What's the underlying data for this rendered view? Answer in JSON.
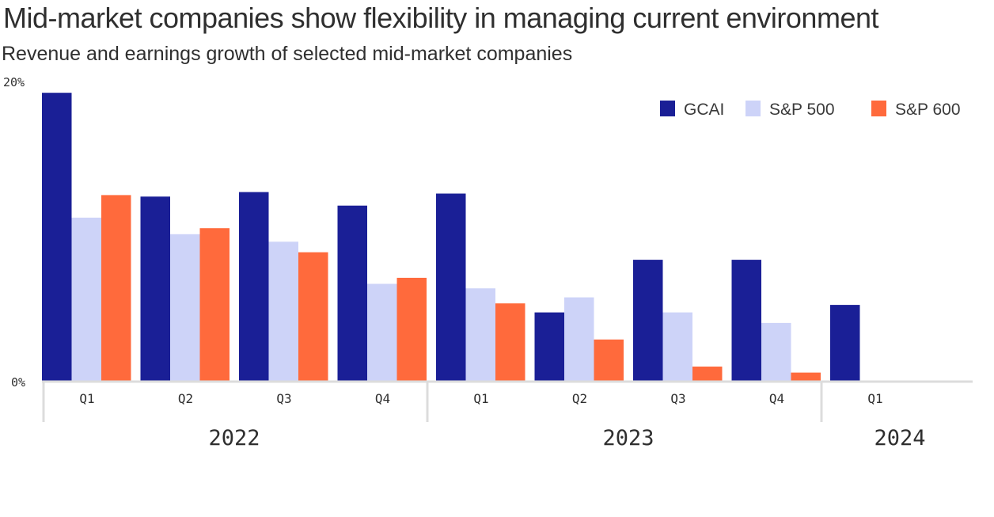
{
  "chart_data": {
    "type": "bar",
    "title": "Mid-market companies show flexibility in managing current environment",
    "subtitle": "Revenue and earnings growth of selected mid-market companies",
    "ylabel": "",
    "xlabel": "",
    "ylim": [
      0,
      20
    ],
    "ytick_labels": [
      "0%",
      "20%"
    ],
    "categories": [
      "Q1",
      "Q2",
      "Q3",
      "Q4",
      "Q1",
      "Q2",
      "Q3",
      "Q4",
      "Q1"
    ],
    "year_groups": [
      {
        "label": "2022",
        "count": 4
      },
      {
        "label": "2023",
        "count": 4
      },
      {
        "label": "2024",
        "count": 1
      }
    ],
    "series": [
      {
        "name": "GCAI",
        "color": "#1a1f96",
        "values": [
          19.2,
          12.3,
          12.6,
          11.7,
          12.5,
          4.6,
          8.1,
          8.1,
          5.1
        ]
      },
      {
        "name": "S&P 500",
        "color": "#cdd3f8",
        "values": [
          10.9,
          9.8,
          9.3,
          6.5,
          6.2,
          5.6,
          4.6,
          3.9,
          null
        ]
      },
      {
        "name": "S&P 600",
        "color": "#ff6a3c",
        "values": [
          12.4,
          10.2,
          8.6,
          6.9,
          5.2,
          2.8,
          1.0,
          0.6,
          null
        ]
      }
    ],
    "legend_position": "top-right",
    "grid": false
  }
}
